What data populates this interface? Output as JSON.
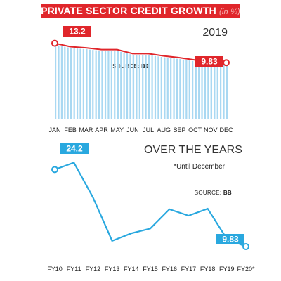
{
  "title": {
    "main": "PRIVATE SECTOR CREDIT GROWTH",
    "unit": "(in %)"
  },
  "top_chart": {
    "year_label": "2019",
    "source_label": "SOURCE:",
    "source_value": "BB"
  },
  "bottom_chart": {
    "title": "OVER THE YEARS",
    "note": "*Until December",
    "source_label": "SOURCE:",
    "source_value": "BB"
  },
  "colors": {
    "red": "#e0262b",
    "blue": "#29a8df",
    "bar_fill": "#a9d8f2",
    "gray_value_bg": "#b9c7d0"
  },
  "chart_data": [
    {
      "type": "bar",
      "title": "2019",
      "categories": [
        "JAN",
        "FEB",
        "MAR",
        "APR",
        "MAY",
        "JUN",
        "JUL",
        "AUG",
        "SEP",
        "OCT",
        "NOV",
        "DEC"
      ],
      "values": [
        13.2,
        12.6,
        12.4,
        12.1,
        12.1,
        11.4,
        11.4,
        11.0,
        10.7,
        10.3,
        10.0,
        9.83
      ],
      "line_overlay": true,
      "labeled_points": {
        "JAN": "13.2",
        "DEC": "9.83"
      },
      "ylim": [
        0,
        14
      ]
    },
    {
      "type": "line",
      "title": "OVER THE YEARS",
      "categories": [
        "FY10",
        "FY11",
        "FY12",
        "FY13",
        "FY14",
        "FY15",
        "FY16",
        "FY17",
        "FY18",
        "FY19",
        "FY20*"
      ],
      "values": [
        24.2,
        25.5,
        19.0,
        10.9,
        12.3,
        13.2,
        16.8,
        15.6,
        16.9,
        11.3,
        9.83
      ],
      "labeled_points": {
        "FY10": "24.2",
        "FY20*": "9.83"
      },
      "ylim": [
        8,
        27
      ]
    }
  ]
}
